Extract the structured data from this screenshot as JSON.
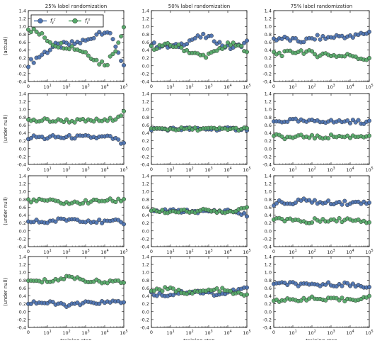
{
  "figure": {
    "column_titles": [
      "25% label randomization",
      "50% label randomization",
      "75% label randomization"
    ],
    "row_labels": [
      "(actual)",
      "(under null)",
      "(under null)",
      "(under null)"
    ],
    "xlabel": "training step",
    "legend": {
      "entries": [
        "f_ℓ^c",
        "f_ℓ^s"
      ],
      "location": "upper-left of top-left panel"
    },
    "colors": {
      "blue": "#4c72b0",
      "green": "#55a868",
      "frame": "#000000"
    }
  },
  "chart_data": [
    {
      "type": "scatter",
      "title": "25% label randomization",
      "ylabel": "(actual)",
      "xlabel": "",
      "xscale": "log",
      "xlim": [
        1,
        100000
      ],
      "ylim": [
        -0.4,
        1.4
      ],
      "xticklabels": [
        "0",
        "10^1",
        "10^2",
        "10^3",
        "10^4",
        "10^5"
      ],
      "yticklabels": [
        "-0.4",
        "-0.2",
        "0.0",
        "0.2",
        "0.4",
        "0.6",
        "0.8",
        "1.0",
        "1.2",
        "1.4"
      ],
      "series": [
        {
          "name": "f_ℓ^c",
          "color": "#4c72b0",
          "mean": [
            0.05,
            0.2,
            0.35,
            0.5,
            0.52,
            0.55,
            0.6,
            0.65,
            0.85,
            0.9,
            0.55,
            0.0
          ],
          "spread": 0.08
        },
        {
          "name": "f_ℓ^s",
          "color": "#55a868",
          "mean": [
            0.95,
            0.85,
            0.7,
            0.55,
            0.52,
            0.48,
            0.4,
            0.3,
            0.1,
            0.05,
            0.4,
            1.0
          ],
          "spread": 0.08
        }
      ]
    },
    {
      "type": "scatter",
      "title": "50% label randomization",
      "ylabel": "",
      "xlabel": "",
      "xscale": "log",
      "xlim": [
        1,
        100000
      ],
      "ylim": [
        -0.4,
        1.4
      ],
      "xticklabels": [
        "0",
        "10^1",
        "10^2",
        "10^3",
        "10^4",
        "10^5"
      ],
      "yticklabels": [
        "-0.4",
        "-0.2",
        "0.0",
        "0.2",
        "0.4",
        "0.6",
        "0.8",
        "1.0",
        "1.2",
        "1.4"
      ],
      "series": [
        {
          "name": "f_ℓ^c",
          "color": "#4c72b0",
          "mean": [
            0.55,
            0.5,
            0.48,
            0.5,
            0.6,
            0.7,
            0.75,
            0.7,
            0.55,
            0.45,
            0.5,
            0.6
          ],
          "spread": 0.06
        },
        {
          "name": "f_ℓ^s",
          "color": "#55a868",
          "mean": [
            0.45,
            0.5,
            0.52,
            0.5,
            0.4,
            0.3,
            0.25,
            0.3,
            0.45,
            0.55,
            0.5,
            0.4
          ],
          "spread": 0.06
        }
      ]
    },
    {
      "type": "scatter",
      "title": "75% label randomization",
      "ylabel": "",
      "xlabel": "",
      "xscale": "log",
      "xlim": [
        1,
        100000
      ],
      "ylim": [
        -0.4,
        1.4
      ],
      "xticklabels": [
        "0",
        "10^1",
        "10^2",
        "10^3",
        "10^4",
        "10^5"
      ],
      "yticklabels": [
        "-0.4",
        "-0.2",
        "0.0",
        "0.2",
        "0.4",
        "0.6",
        "0.8",
        "1.0",
        "1.2",
        "1.4"
      ],
      "series": [
        {
          "name": "f_ℓ^c",
          "color": "#4c72b0",
          "mean": [
            0.68,
            0.7,
            0.66,
            0.62,
            0.66,
            0.72,
            0.7,
            0.74,
            0.76,
            0.72,
            0.8,
            0.85
          ],
          "spread": 0.06
        },
        {
          "name": "f_ℓ^s",
          "color": "#55a868",
          "mean": [
            0.32,
            0.3,
            0.34,
            0.38,
            0.34,
            0.28,
            0.3,
            0.26,
            0.24,
            0.28,
            0.2,
            0.15
          ],
          "spread": 0.06
        }
      ]
    },
    {
      "type": "scatter",
      "title": "",
      "ylabel": "(under null)",
      "xlabel": "",
      "xscale": "log",
      "xlim": [
        1,
        100000
      ],
      "ylim": [
        -0.4,
        1.4
      ],
      "xticklabels": [
        "0",
        "10^1",
        "10^2",
        "10^3",
        "10^4",
        "10^5"
      ],
      "yticklabels": [
        "-0.4",
        "-0.2",
        "0.0",
        "0.2",
        "0.4",
        "0.6",
        "0.8",
        "1.0",
        "1.2",
        "1.4"
      ],
      "series": [
        {
          "name": "f_ℓ^c",
          "color": "#4c72b0",
          "mean": [
            0.28,
            0.3,
            0.27,
            0.3,
            0.28,
            0.3,
            0.29,
            0.3,
            0.28,
            0.3,
            0.25,
            0.1
          ],
          "spread": 0.05
        },
        {
          "name": "f_ℓ^s",
          "color": "#55a868",
          "mean": [
            0.72,
            0.7,
            0.73,
            0.7,
            0.72,
            0.7,
            0.71,
            0.7,
            0.72,
            0.7,
            0.78,
            0.92
          ],
          "spread": 0.05
        }
      ]
    },
    {
      "type": "scatter",
      "title": "",
      "ylabel": "",
      "xlabel": "",
      "xscale": "log",
      "xlim": [
        1,
        100000
      ],
      "ylim": [
        -0.4,
        1.4
      ],
      "xticklabels": [
        "0",
        "10^1",
        "10^2",
        "10^3",
        "10^4",
        "10^5"
      ],
      "yticklabels": [
        "-0.4",
        "-0.2",
        "0.0",
        "0.2",
        "0.4",
        "0.6",
        "0.8",
        "1.0",
        "1.2",
        "1.4"
      ],
      "series": [
        {
          "name": "f_ℓ^c",
          "color": "#4c72b0",
          "mean": [
            0.5,
            0.5,
            0.5,
            0.5,
            0.5,
            0.5,
            0.5,
            0.5,
            0.5,
            0.5,
            0.5,
            0.5
          ],
          "spread": 0.04
        },
        {
          "name": "f_ℓ^s",
          "color": "#55a868",
          "mean": [
            0.5,
            0.5,
            0.5,
            0.5,
            0.5,
            0.5,
            0.5,
            0.5,
            0.5,
            0.5,
            0.5,
            0.5
          ],
          "spread": 0.04
        }
      ]
    },
    {
      "type": "scatter",
      "title": "",
      "ylabel": "",
      "xlabel": "",
      "xscale": "log",
      "xlim": [
        1,
        100000
      ],
      "ylim": [
        -0.4,
        1.4
      ],
      "xticklabels": [
        "0",
        "10^1",
        "10^2",
        "10^3",
        "10^4",
        "10^5"
      ],
      "yticklabels": [
        "-0.4",
        "-0.2",
        "0.0",
        "0.2",
        "0.4",
        "0.6",
        "0.8",
        "1.0",
        "1.2",
        "1.4"
      ],
      "series": [
        {
          "name": "f_ℓ^c",
          "color": "#4c72b0",
          "mean": [
            0.68,
            0.7,
            0.72,
            0.7,
            0.68,
            0.72,
            0.7,
            0.68,
            0.7,
            0.69,
            0.68,
            0.66
          ],
          "spread": 0.05
        },
        {
          "name": "f_ℓ^s",
          "color": "#55a868",
          "mean": [
            0.32,
            0.3,
            0.28,
            0.3,
            0.32,
            0.28,
            0.3,
            0.32,
            0.3,
            0.31,
            0.32,
            0.34
          ],
          "spread": 0.05
        }
      ]
    },
    {
      "type": "scatter",
      "title": "",
      "ylabel": "(under null)",
      "xlabel": "",
      "xscale": "log",
      "xlim": [
        1,
        100000
      ],
      "ylim": [
        -0.4,
        1.4
      ],
      "xticklabels": [
        "0",
        "10^1",
        "10^2",
        "10^3",
        "10^4",
        "10^5"
      ],
      "yticklabels": [
        "-0.4",
        "-0.2",
        "0.0",
        "0.2",
        "0.4",
        "0.6",
        "0.8",
        "1.0",
        "1.2",
        "1.4"
      ],
      "series": [
        {
          "name": "f_ℓ^c",
          "color": "#4c72b0",
          "mean": [
            0.22,
            0.24,
            0.22,
            0.26,
            0.28,
            0.3,
            0.28,
            0.26,
            0.24,
            0.22,
            0.24,
            0.2
          ],
          "spread": 0.05
        },
        {
          "name": "f_ℓ^s",
          "color": "#55a868",
          "mean": [
            0.78,
            0.76,
            0.78,
            0.74,
            0.72,
            0.7,
            0.72,
            0.74,
            0.76,
            0.78,
            0.76,
            0.8
          ],
          "spread": 0.05
        }
      ]
    },
    {
      "type": "scatter",
      "title": "",
      "ylabel": "",
      "xlabel": "",
      "xscale": "log",
      "xlim": [
        1,
        100000
      ],
      "ylim": [
        -0.4,
        1.4
      ],
      "xticklabels": [
        "0",
        "10^1",
        "10^2",
        "10^3",
        "10^4",
        "10^5"
      ],
      "yticklabels": [
        "-0.4",
        "-0.2",
        "0.0",
        "0.2",
        "0.4",
        "0.6",
        "0.8",
        "1.0",
        "1.2",
        "1.4"
      ],
      "series": [
        {
          "name": "f_ℓ^c",
          "color": "#4c72b0",
          "mean": [
            0.48,
            0.5,
            0.52,
            0.5,
            0.5,
            0.5,
            0.48,
            0.5,
            0.5,
            0.52,
            0.45,
            0.4
          ],
          "spread": 0.04
        },
        {
          "name": "f_ℓ^s",
          "color": "#55a868",
          "mean": [
            0.52,
            0.5,
            0.48,
            0.5,
            0.5,
            0.5,
            0.52,
            0.5,
            0.5,
            0.48,
            0.55,
            0.6
          ],
          "spread": 0.04
        }
      ]
    },
    {
      "type": "scatter",
      "title": "",
      "ylabel": "",
      "xlabel": "",
      "xscale": "log",
      "xlim": [
        1,
        100000
      ],
      "ylim": [
        -0.4,
        1.4
      ],
      "xticklabels": [
        "0",
        "10^1",
        "10^2",
        "10^3",
        "10^4",
        "10^5"
      ],
      "yticklabels": [
        "-0.4",
        "-0.2",
        "0.0",
        "0.2",
        "0.4",
        "0.6",
        "0.8",
        "1.0",
        "1.2",
        "1.4"
      ],
      "series": [
        {
          "name": "f_ℓ^c",
          "color": "#4c72b0",
          "mean": [
            0.7,
            0.72,
            0.68,
            0.75,
            0.8,
            0.72,
            0.7,
            0.74,
            0.72,
            0.7,
            0.72,
            0.76
          ],
          "spread": 0.06
        },
        {
          "name": "f_ℓ^s",
          "color": "#55a868",
          "mean": [
            0.3,
            0.28,
            0.32,
            0.25,
            0.2,
            0.28,
            0.3,
            0.26,
            0.28,
            0.3,
            0.28,
            0.24
          ],
          "spread": 0.06
        }
      ]
    },
    {
      "type": "scatter",
      "title": "",
      "ylabel": "(under null)",
      "xlabel": "training step",
      "xscale": "log",
      "xlim": [
        1,
        100000
      ],
      "ylim": [
        -0.4,
        1.4
      ],
      "xticklabels": [
        "0",
        "10^1",
        "10^2",
        "10^3",
        "10^4",
        "10^5"
      ],
      "yticklabels": [
        "-0.4",
        "-0.2",
        "0.0",
        "0.2",
        "0.4",
        "0.6",
        "0.8",
        "1.0",
        "1.2",
        "1.4"
      ],
      "series": [
        {
          "name": "f_ℓ^c",
          "color": "#4c72b0",
          "mean": [
            0.22,
            0.24,
            0.22,
            0.2,
            0.18,
            0.16,
            0.2,
            0.22,
            0.24,
            0.22,
            0.25,
            0.26
          ],
          "spread": 0.05
        },
        {
          "name": "f_ℓ^s",
          "color": "#55a868",
          "mean": [
            0.78,
            0.76,
            0.78,
            0.8,
            0.84,
            0.9,
            0.82,
            0.78,
            0.76,
            0.78,
            0.75,
            0.74
          ],
          "spread": 0.05
        }
      ]
    },
    {
      "type": "scatter",
      "title": "",
      "ylabel": "",
      "xlabel": "training step",
      "xscale": "log",
      "xlim": [
        1,
        100000
      ],
      "ylim": [
        -0.4,
        1.4
      ],
      "xticklabels": [
        "0",
        "10^1",
        "10^2",
        "10^3",
        "10^4",
        "10^5"
      ],
      "yticklabels": [
        "-0.4",
        "-0.2",
        "0.0",
        "0.2",
        "0.4",
        "0.6",
        "0.8",
        "1.0",
        "1.2",
        "1.4"
      ],
      "series": [
        {
          "name": "f_ℓ^c",
          "color": "#4c72b0",
          "mean": [
            0.45,
            0.44,
            0.42,
            0.48,
            0.5,
            0.52,
            0.48,
            0.46,
            0.44,
            0.5,
            0.55,
            0.6
          ],
          "spread": 0.05
        },
        {
          "name": "f_ℓ^s",
          "color": "#55a868",
          "mean": [
            0.55,
            0.56,
            0.58,
            0.52,
            0.5,
            0.48,
            0.52,
            0.54,
            0.56,
            0.5,
            0.45,
            0.4
          ],
          "spread": 0.05
        }
      ]
    },
    {
      "type": "scatter",
      "title": "",
      "ylabel": "",
      "xlabel": "training step",
      "xscale": "log",
      "xlim": [
        1,
        100000
      ],
      "ylim": [
        -0.4,
        1.4
      ],
      "xticklabels": [
        "0",
        "10^1",
        "10^2",
        "10^3",
        "10^4",
        "10^5"
      ],
      "yticklabels": [
        "-0.4",
        "-0.2",
        "0.0",
        "0.2",
        "0.4",
        "0.6",
        "0.8",
        "1.0",
        "1.2",
        "1.4"
      ],
      "series": [
        {
          "name": "f_ℓ^c",
          "color": "#4c72b0",
          "mean": [
            0.7,
            0.7,
            0.72,
            0.68,
            0.66,
            0.68,
            0.7,
            0.69,
            0.7,
            0.68,
            0.66,
            0.64
          ],
          "spread": 0.05
        },
        {
          "name": "f_ℓ^s",
          "color": "#55a868",
          "mean": [
            0.3,
            0.3,
            0.28,
            0.32,
            0.34,
            0.32,
            0.3,
            0.31,
            0.3,
            0.32,
            0.34,
            0.36
          ],
          "spread": 0.05
        }
      ]
    }
  ]
}
